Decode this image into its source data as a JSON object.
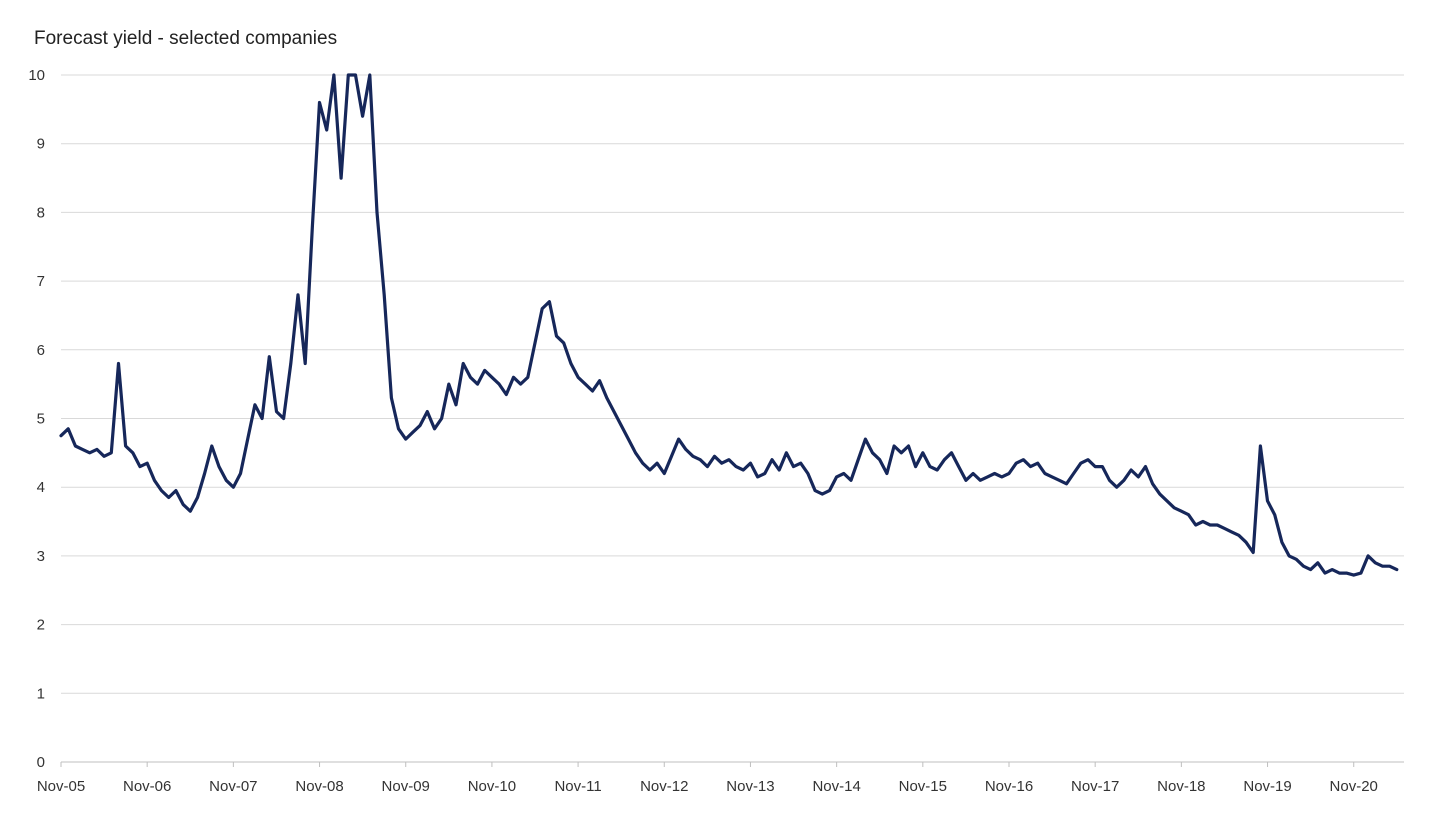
{
  "chart_data": {
    "type": "line",
    "title": "Forecast yield - selected companies",
    "xlabel": "",
    "ylabel": "",
    "xlim": [
      "2005-11",
      "2021-06"
    ],
    "ylim": [
      0,
      10
    ],
    "grid": "horizontal",
    "legend": "none",
    "line_color": "#16275a",
    "grid_color": "#d9d9d9",
    "y_ticks": [
      0,
      1,
      2,
      3,
      4,
      5,
      6,
      7,
      8,
      9,
      10
    ],
    "x_ticks": [
      {
        "label": "Nov-05",
        "date": "2005-11"
      },
      {
        "label": "Nov-06",
        "date": "2006-11"
      },
      {
        "label": "Nov-07",
        "date": "2007-11"
      },
      {
        "label": "Nov-08",
        "date": "2008-11"
      },
      {
        "label": "Nov-09",
        "date": "2009-11"
      },
      {
        "label": "Nov-10",
        "date": "2010-11"
      },
      {
        "label": "Nov-11",
        "date": "2011-11"
      },
      {
        "label": "Nov-12",
        "date": "2012-11"
      },
      {
        "label": "Nov-13",
        "date": "2013-11"
      },
      {
        "label": "Nov-14",
        "date": "2014-11"
      },
      {
        "label": "Nov-15",
        "date": "2015-11"
      },
      {
        "label": "Nov-16",
        "date": "2016-11"
      },
      {
        "label": "Nov-17",
        "date": "2017-11"
      },
      {
        "label": "Nov-18",
        "date": "2018-11"
      },
      {
        "label": "Nov-19",
        "date": "2019-11"
      },
      {
        "label": "Nov-20",
        "date": "2020-11"
      }
    ],
    "series": [
      {
        "points": [
          [
            "2005-11",
            4.75
          ],
          [
            "2005-12",
            4.85
          ],
          [
            "2006-01",
            4.6
          ],
          [
            "2006-02",
            4.55
          ],
          [
            "2006-03",
            4.5
          ],
          [
            "2006-04",
            4.55
          ],
          [
            "2006-05",
            4.45
          ],
          [
            "2006-06",
            4.5
          ],
          [
            "2006-07",
            5.8
          ],
          [
            "2006-08",
            4.6
          ],
          [
            "2006-09",
            4.5
          ],
          [
            "2006-10",
            4.3
          ],
          [
            "2006-11",
            4.35
          ],
          [
            "2006-12",
            4.1
          ],
          [
            "2007-01",
            3.95
          ],
          [
            "2007-02",
            3.85
          ],
          [
            "2007-03",
            3.95
          ],
          [
            "2007-04",
            3.75
          ],
          [
            "2007-05",
            3.65
          ],
          [
            "2007-06",
            3.85
          ],
          [
            "2007-07",
            4.2
          ],
          [
            "2007-08",
            4.6
          ],
          [
            "2007-09",
            4.3
          ],
          [
            "2007-10",
            4.1
          ],
          [
            "2007-11",
            4.0
          ],
          [
            "2007-12",
            4.2
          ],
          [
            "2008-01",
            4.7
          ],
          [
            "2008-02",
            5.2
          ],
          [
            "2008-03",
            5.0
          ],
          [
            "2008-04",
            5.9
          ],
          [
            "2008-05",
            5.1
          ],
          [
            "2008-06",
            5.0
          ],
          [
            "2008-07",
            5.8
          ],
          [
            "2008-08",
            6.8
          ],
          [
            "2008-09",
            5.8
          ],
          [
            "2008-10",
            7.8
          ],
          [
            "2008-11",
            9.6
          ],
          [
            "2008-12",
            9.2
          ],
          [
            "2009-01",
            10.0
          ],
          [
            "2009-02",
            8.5
          ],
          [
            "2009-03",
            10.0
          ],
          [
            "2009-04",
            10.0
          ],
          [
            "2009-05",
            9.4
          ],
          [
            "2009-06",
            10.0
          ],
          [
            "2009-07",
            8.0
          ],
          [
            "2009-08",
            6.8
          ],
          [
            "2009-09",
            5.3
          ],
          [
            "2009-10",
            4.85
          ],
          [
            "2009-11",
            4.7
          ],
          [
            "2009-12",
            4.8
          ],
          [
            "2010-01",
            4.9
          ],
          [
            "2010-02",
            5.1
          ],
          [
            "2010-03",
            4.85
          ],
          [
            "2010-04",
            5.0
          ],
          [
            "2010-05",
            5.5
          ],
          [
            "2010-06",
            5.2
          ],
          [
            "2010-07",
            5.8
          ],
          [
            "2010-08",
            5.6
          ],
          [
            "2010-09",
            5.5
          ],
          [
            "2010-10",
            5.7
          ],
          [
            "2010-11",
            5.6
          ],
          [
            "2010-12",
            5.5
          ],
          [
            "2011-01",
            5.35
          ],
          [
            "2011-02",
            5.6
          ],
          [
            "2011-03",
            5.5
          ],
          [
            "2011-04",
            5.6
          ],
          [
            "2011-05",
            6.1
          ],
          [
            "2011-06",
            6.6
          ],
          [
            "2011-07",
            6.7
          ],
          [
            "2011-08",
            6.2
          ],
          [
            "2011-09",
            6.1
          ],
          [
            "2011-10",
            5.8
          ],
          [
            "2011-11",
            5.6
          ],
          [
            "2011-12",
            5.5
          ],
          [
            "2012-01",
            5.4
          ],
          [
            "2012-02",
            5.55
          ],
          [
            "2012-03",
            5.3
          ],
          [
            "2012-04",
            5.1
          ],
          [
            "2012-05",
            4.9
          ],
          [
            "2012-06",
            4.7
          ],
          [
            "2012-07",
            4.5
          ],
          [
            "2012-08",
            4.35
          ],
          [
            "2012-09",
            4.25
          ],
          [
            "2012-10",
            4.35
          ],
          [
            "2012-11",
            4.2
          ],
          [
            "2012-12",
            4.45
          ],
          [
            "2013-01",
            4.7
          ],
          [
            "2013-02",
            4.55
          ],
          [
            "2013-03",
            4.45
          ],
          [
            "2013-04",
            4.4
          ],
          [
            "2013-05",
            4.3
          ],
          [
            "2013-06",
            4.45
          ],
          [
            "2013-07",
            4.35
          ],
          [
            "2013-08",
            4.4
          ],
          [
            "2013-09",
            4.3
          ],
          [
            "2013-10",
            4.25
          ],
          [
            "2013-11",
            4.35
          ],
          [
            "2013-12",
            4.15
          ],
          [
            "2014-01",
            4.2
          ],
          [
            "2014-02",
            4.4
          ],
          [
            "2014-03",
            4.25
          ],
          [
            "2014-04",
            4.5
          ],
          [
            "2014-05",
            4.3
          ],
          [
            "2014-06",
            4.35
          ],
          [
            "2014-07",
            4.2
          ],
          [
            "2014-08",
            3.95
          ],
          [
            "2014-09",
            3.9
          ],
          [
            "2014-10",
            3.95
          ],
          [
            "2014-11",
            4.15
          ],
          [
            "2014-12",
            4.2
          ],
          [
            "2015-01",
            4.1
          ],
          [
            "2015-02",
            4.4
          ],
          [
            "2015-03",
            4.7
          ],
          [
            "2015-04",
            4.5
          ],
          [
            "2015-05",
            4.4
          ],
          [
            "2015-06",
            4.2
          ],
          [
            "2015-07",
            4.6
          ],
          [
            "2015-08",
            4.5
          ],
          [
            "2015-09",
            4.6
          ],
          [
            "2015-10",
            4.3
          ],
          [
            "2015-11",
            4.5
          ],
          [
            "2015-12",
            4.3
          ],
          [
            "2016-01",
            4.25
          ],
          [
            "2016-02",
            4.4
          ],
          [
            "2016-03",
            4.5
          ],
          [
            "2016-04",
            4.3
          ],
          [
            "2016-05",
            4.1
          ],
          [
            "2016-06",
            4.2
          ],
          [
            "2016-07",
            4.1
          ],
          [
            "2016-08",
            4.15
          ],
          [
            "2016-09",
            4.2
          ],
          [
            "2016-10",
            4.15
          ],
          [
            "2016-11",
            4.2
          ],
          [
            "2016-12",
            4.35
          ],
          [
            "2017-01",
            4.4
          ],
          [
            "2017-02",
            4.3
          ],
          [
            "2017-03",
            4.35
          ],
          [
            "2017-04",
            4.2
          ],
          [
            "2017-05",
            4.15
          ],
          [
            "2017-06",
            4.1
          ],
          [
            "2017-07",
            4.05
          ],
          [
            "2017-08",
            4.2
          ],
          [
            "2017-09",
            4.35
          ],
          [
            "2017-10",
            4.4
          ],
          [
            "2017-11",
            4.3
          ],
          [
            "2017-12",
            4.3
          ],
          [
            "2018-01",
            4.1
          ],
          [
            "2018-02",
            4.0
          ],
          [
            "2018-03",
            4.1
          ],
          [
            "2018-04",
            4.25
          ],
          [
            "2018-05",
            4.15
          ],
          [
            "2018-06",
            4.3
          ],
          [
            "2018-07",
            4.05
          ],
          [
            "2018-08",
            3.9
          ],
          [
            "2018-09",
            3.8
          ],
          [
            "2018-10",
            3.7
          ],
          [
            "2018-11",
            3.65
          ],
          [
            "2018-12",
            3.6
          ],
          [
            "2019-01",
            3.45
          ],
          [
            "2019-02",
            3.5
          ],
          [
            "2019-03",
            3.45
          ],
          [
            "2019-04",
            3.45
          ],
          [
            "2019-05",
            3.4
          ],
          [
            "2019-06",
            3.35
          ],
          [
            "2019-07",
            3.3
          ],
          [
            "2019-08",
            3.2
          ],
          [
            "2019-09",
            3.05
          ],
          [
            "2019-10",
            4.6
          ],
          [
            "2019-11",
            3.8
          ],
          [
            "2019-12",
            3.6
          ],
          [
            "2020-01",
            3.2
          ],
          [
            "2020-02",
            3.0
          ],
          [
            "2020-03",
            2.95
          ],
          [
            "2020-04",
            2.85
          ],
          [
            "2020-05",
            2.8
          ],
          [
            "2020-06",
            2.9
          ],
          [
            "2020-07",
            2.75
          ],
          [
            "2020-08",
            2.8
          ],
          [
            "2020-09",
            2.75
          ],
          [
            "2020-10",
            2.75
          ],
          [
            "2020-11",
            2.72
          ],
          [
            "2020-12",
            2.75
          ],
          [
            "2021-01",
            3.0
          ],
          [
            "2021-02",
            2.9
          ],
          [
            "2021-03",
            2.85
          ],
          [
            "2021-04",
            2.85
          ],
          [
            "2021-05",
            2.8
          ]
        ]
      }
    ]
  }
}
